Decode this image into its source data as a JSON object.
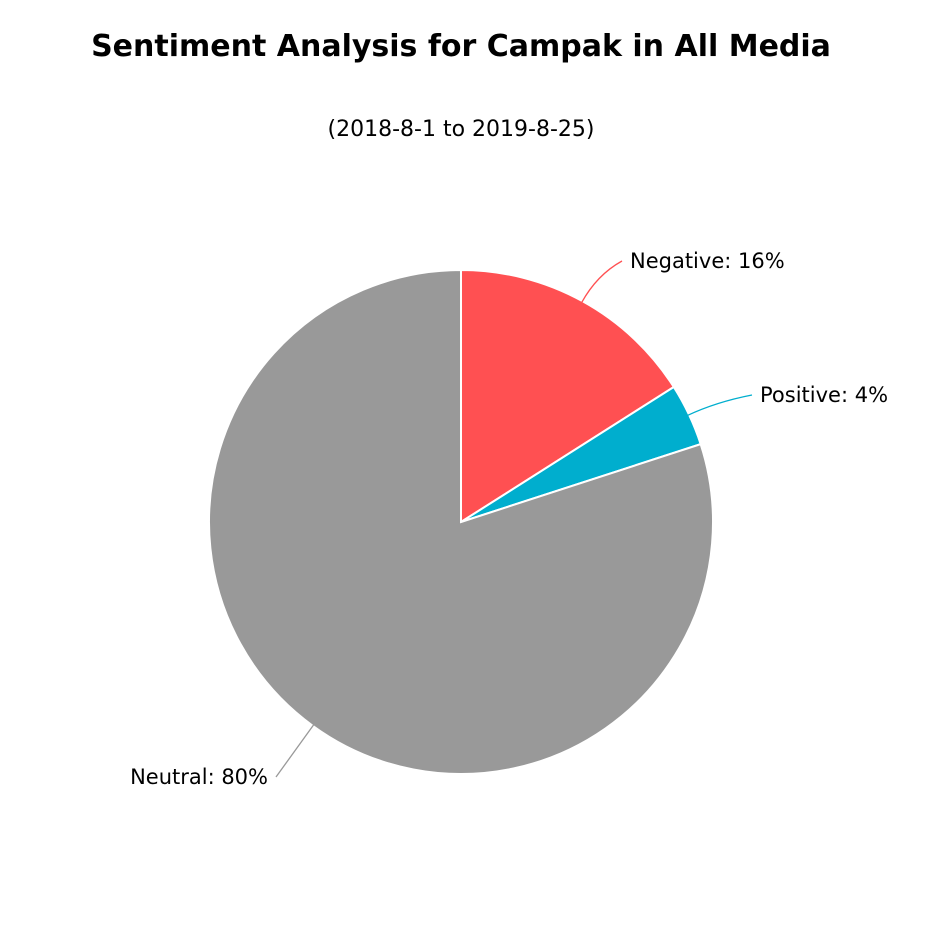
{
  "chart_data": {
    "type": "pie",
    "title": "Sentiment Analysis for Campak in All Media",
    "subtitle": "(2018-8-1 to 2019-8-25)",
    "slices": [
      {
        "label": "Negative",
        "value": 16,
        "display": "Negative: 16%",
        "color": "#FF5052"
      },
      {
        "label": "Positive",
        "value": 4,
        "display": "Positive: 4%",
        "color": "#00AECE"
      },
      {
        "label": "Neutral",
        "value": 80,
        "display": "Neutral: 80%",
        "color": "#999999"
      }
    ],
    "start_angle": "12 o'clock",
    "direction": "clockwise",
    "legend": "none",
    "data_labels": "outside with connectors"
  }
}
